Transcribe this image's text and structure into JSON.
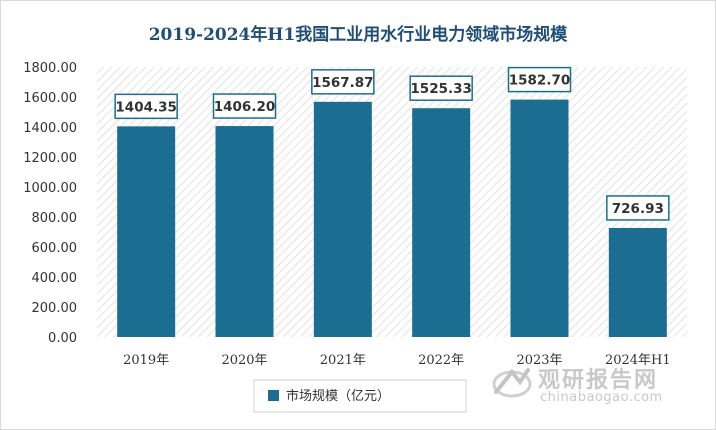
{
  "chart_data": {
    "type": "bar",
    "title": "2019-2024年H1我国工业用水行业电力领域市场规模",
    "categories": [
      "2019年",
      "2020年",
      "2021年",
      "2022年",
      "2023年",
      "2024年H1"
    ],
    "series": [
      {
        "name": "市场规模（亿元）",
        "values": [
          1404.35,
          1406.2,
          1567.87,
          1525.33,
          1582.7,
          726.93
        ],
        "labels": [
          "1404.35",
          "1406.20",
          "1567.87",
          "1525.33",
          "1582.70",
          "726.93"
        ]
      }
    ],
    "yticks": [
      "0.00",
      "200.00",
      "400.00",
      "600.00",
      "800.00",
      "1000.00",
      "1200.00",
      "1400.00",
      "1600.00",
      "1800.00"
    ],
    "ylim": [
      0,
      1800
    ],
    "ystep": 200,
    "xlabel": "",
    "ylabel": "",
    "legend_position": "bottom",
    "grid": false
  },
  "colors": {
    "bar": "#1c6d92",
    "title": "#1f4e79",
    "label_border": "#1c6d92",
    "plot_hatch": "#dcdcdc"
  },
  "watermark": {
    "name": "观研报告网",
    "url": "chinabaogao.com"
  }
}
